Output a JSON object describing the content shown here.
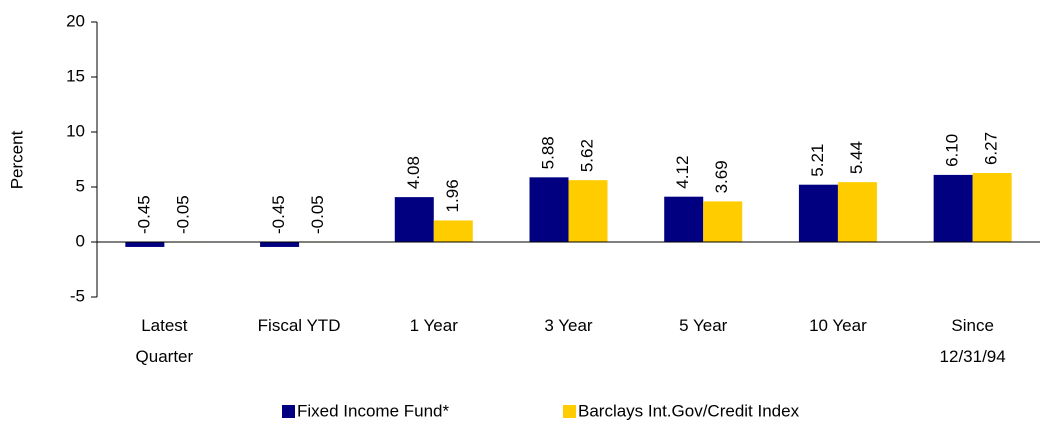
{
  "chart_data": {
    "type": "bar",
    "y_label": "Percent",
    "categories": [
      "Latest\nQuarter",
      "Fiscal YTD",
      "1 Year",
      "3 Year",
      "5 Year",
      "10 Year",
      "Since\n12/31/94"
    ],
    "series": [
      {
        "name": "Fixed Income Fund*",
        "color": "#000080",
        "values": [
          -0.45,
          -0.45,
          4.08,
          5.88,
          4.12,
          5.21,
          6.1
        ],
        "value_labels": [
          "-0.45",
          "-0.45",
          "4.08",
          "5.88",
          "4.12",
          "5.21",
          "6.10"
        ]
      },
      {
        "name": "Barclays Int.Gov/Credit Index",
        "color": "#FFCC00",
        "values": [
          -0.05,
          -0.05,
          1.96,
          5.62,
          3.69,
          5.44,
          6.27
        ],
        "value_labels": [
          "-0.05",
          "-0.05",
          "1.96",
          "5.62",
          "3.69",
          "5.44",
          "6.27"
        ]
      }
    ],
    "ylim": [
      -5,
      20
    ],
    "yticks": [
      -5,
      0,
      5,
      10,
      15,
      20
    ],
    "legend": "bottom"
  }
}
